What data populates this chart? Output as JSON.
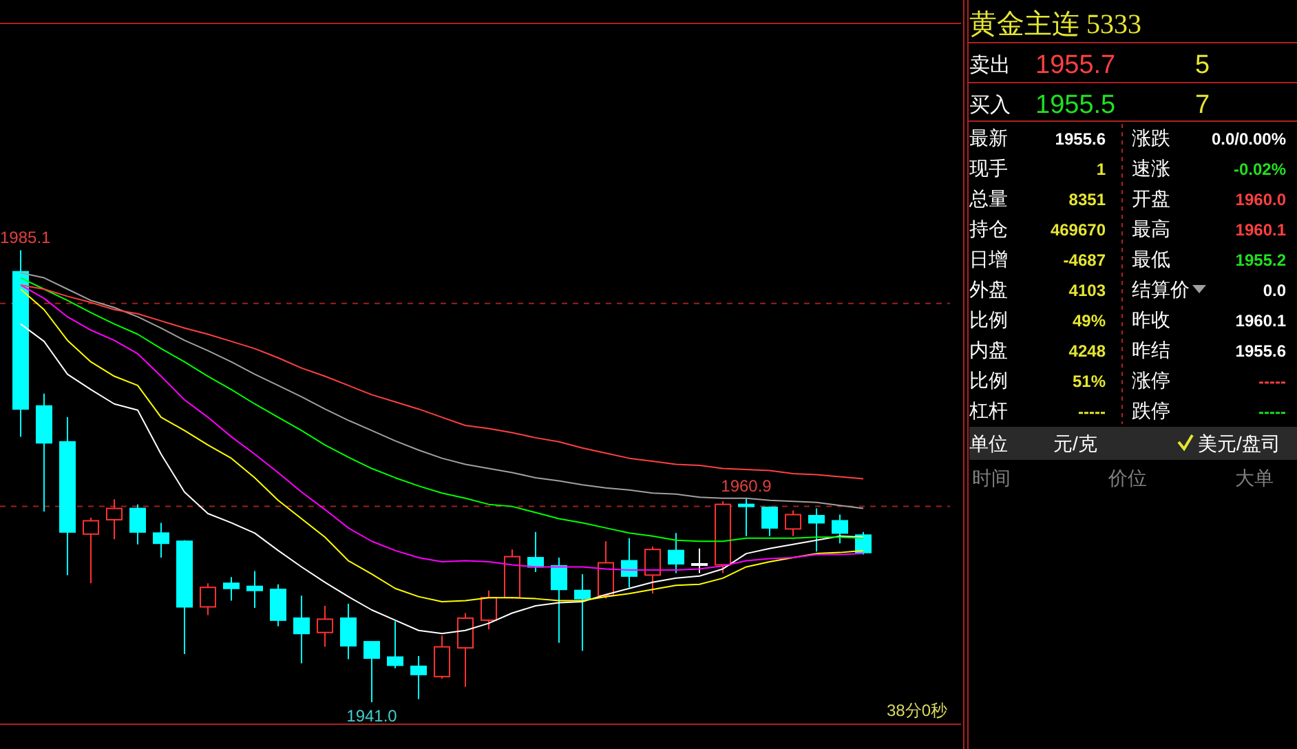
{
  "chart_data": [
    {
      "type": "candlestick",
      "categories": [
        null,
        null,
        null,
        null,
        null,
        null,
        null,
        null,
        null,
        null,
        null,
        null,
        null,
        null,
        null,
        null,
        null,
        null,
        null,
        null,
        null,
        null,
        null,
        null,
        null,
        null,
        null,
        null,
        null,
        null,
        null,
        null,
        null,
        null,
        null,
        null,
        null
      ],
      "ohlc": [
        [
          1983.0,
          1985.1,
          1966.9,
          1969.6
        ],
        [
          1969.9,
          1971.1,
          1959.6,
          1966.3
        ],
        [
          1966.4,
          1968.8,
          1953.4,
          1957.6
        ],
        [
          1957.4,
          1959.0,
          1952.6,
          1958.7
        ],
        [
          1958.8,
          1960.8,
          1956.9,
          1959.9
        ],
        [
          1959.9,
          1960.3,
          1956.4,
          1957.6
        ],
        [
          1957.5,
          1958.5,
          1955.1,
          1956.5
        ],
        [
          1956.7,
          1956.8,
          1945.7,
          1950.3
        ],
        [
          1950.3,
          1952.6,
          1949.5,
          1952.2
        ],
        [
          1952.6,
          1953.2,
          1950.9,
          1952.1
        ],
        [
          1952.3,
          1953.8,
          1950.2,
          1951.9
        ],
        [
          1952.0,
          1952.5,
          1948.4,
          1949.0
        ],
        [
          1949.2,
          1951.4,
          1944.8,
          1947.7
        ],
        [
          1947.8,
          1950.4,
          1946.4,
          1949.1
        ],
        [
          1949.2,
          1950.6,
          1945.2,
          1946.5
        ],
        [
          1946.9,
          1946.9,
          1941.0,
          1945.3
        ],
        [
          1945.4,
          1948.9,
          1944.3,
          1944.6
        ],
        [
          1944.5,
          1945.5,
          1941.3,
          1943.7
        ],
        [
          1943.5,
          1947.5,
          1943.3,
          1946.4
        ],
        [
          1946.3,
          1949.7,
          1942.5,
          1949.2
        ],
        [
          1949.0,
          1951.9,
          1948.1,
          1951.2
        ],
        [
          1951.2,
          1955.9,
          1951.1,
          1955.2
        ],
        [
          1955.1,
          1957.6,
          1953.7,
          1954.2
        ],
        [
          1954.3,
          1955.1,
          1946.8,
          1952.0
        ],
        [
          1951.9,
          1953.5,
          1946.0,
          1951.1
        ],
        [
          1951.4,
          1956.7,
          1951.1,
          1954.6
        ],
        [
          1954.8,
          1957.0,
          1952.2,
          1953.3
        ],
        [
          1953.4,
          1956.2,
          1951.6,
          1955.9
        ],
        [
          1955.8,
          1957.5,
          1953.6,
          1954.5
        ],
        [
          1954.5,
          1956.0,
          1953.6,
          1954.5
        ],
        [
          1954.4,
          1960.6,
          1953.6,
          1960.3
        ],
        [
          1960.3,
          1960.9,
          1957.2,
          1960.1
        ],
        [
          1960.0,
          1960.1,
          1957.2,
          1958.0
        ],
        [
          1957.9,
          1959.7,
          1957.2,
          1959.3
        ],
        [
          1959.2,
          1959.9,
          1955.7,
          1958.5
        ],
        [
          1958.7,
          1959.3,
          1956.5,
          1957.5
        ],
        [
          1957.3,
          1957.6,
          1955.4,
          1955.6
        ]
      ],
      "colors": [
        "#00ffff",
        "#00ffff",
        "#00ffff",
        "#ff3232",
        "#ff3232",
        "#00ffff",
        "#00ffff",
        "#00ffff",
        "#ff3232",
        "#00ffff",
        "#00ffff",
        "#00ffff",
        "#00ffff",
        "#ff3232",
        "#00ffff",
        "#00ffff",
        "#00ffff",
        "#00ffff",
        "#ff3232",
        "#ff3232",
        "#ff3232",
        "#ff3232",
        "#00ffff",
        "#00ffff",
        "#00ffff",
        "#ff3232",
        "#00ffff",
        "#ff3232",
        "#00ffff",
        "#ffffff",
        "#ff3232",
        "#00ffff",
        "#00ffff",
        "#ff3232",
        "#00ffff",
        "#00ffff",
        "#00ffff"
      ],
      "series": [
        {
          "type": "line",
          "color": "#ffffff",
          "values": [
            1977.9,
            1976.2,
            1973.0,
            1971.5,
            1970.1,
            1969.5,
            1965.2,
            1961.5,
            1959.4,
            1958.5,
            1957.5,
            1955.8,
            1954.2,
            1952.7,
            1951.3,
            1950.0,
            1949.0,
            1948.0,
            1947.7,
            1948.0,
            1948.7,
            1949.7,
            1950.4,
            1950.7,
            1950.8,
            1951.5,
            1952.1,
            1952.7,
            1953.1,
            1953.3,
            1954.0,
            1955.5,
            1956.0,
            1956.4,
            1956.8,
            1957.2,
            1957.1
          ]
        },
        {
          "type": "line",
          "color": "#ffff00",
          "values": [
            1981.3,
            1979.3,
            1976.3,
            1974.2,
            1972.8,
            1971.9,
            1968.8,
            1967.5,
            1966.1,
            1964.8,
            1962.9,
            1960.7,
            1958.9,
            1957.1,
            1954.8,
            1953.5,
            1952.1,
            1951.3,
            1950.8,
            1950.9,
            1951.2,
            1951.2,
            1951.1,
            1950.9,
            1950.9,
            1951.3,
            1951.6,
            1952.0,
            1952.4,
            1952.5,
            1953.1,
            1954.2,
            1954.7,
            1955.1,
            1955.5,
            1955.6,
            1955.8
          ]
        },
        {
          "type": "line",
          "color": "#ff00ff",
          "values": [
            1981.7,
            1980.4,
            1978.6,
            1977.3,
            1976.3,
            1975.0,
            1972.8,
            1970.5,
            1968.8,
            1966.9,
            1965.2,
            1963.4,
            1961.5,
            1959.8,
            1958.0,
            1956.7,
            1955.8,
            1955.1,
            1954.7,
            1954.8,
            1954.7,
            1954.4,
            1954.2,
            1954.2,
            1954.2,
            1954.0,
            1953.9,
            1953.9,
            1953.9,
            1954.0,
            1954.3,
            1954.8,
            1955.0,
            1955.1,
            1955.4,
            1955.4,
            1955.5
          ]
        },
        {
          "type": "line",
          "color": "#00ff00",
          "values": [
            1982.4,
            1981.3,
            1980.2,
            1979.0,
            1977.9,
            1976.9,
            1975.5,
            1974.2,
            1972.8,
            1971.5,
            1970.1,
            1968.8,
            1967.5,
            1966.1,
            1964.9,
            1963.8,
            1962.9,
            1962.1,
            1961.4,
            1960.9,
            1960.3,
            1960.1,
            1959.5,
            1958.9,
            1958.5,
            1958.0,
            1957.5,
            1957.2,
            1956.8,
            1956.7,
            1956.7,
            1957.0,
            1957.0,
            1957.0,
            1957.1,
            1957.1,
            1957.0
          ]
        },
        {
          "type": "line",
          "color": "#a0a0a0",
          "values": [
            1982.9,
            1982.4,
            1981.3,
            1980.2,
            1979.5,
            1978.6,
            1977.5,
            1976.3,
            1975.3,
            1974.2,
            1973.0,
            1971.9,
            1970.8,
            1969.6,
            1968.5,
            1967.5,
            1966.5,
            1965.6,
            1964.8,
            1964.2,
            1963.8,
            1963.4,
            1962.9,
            1962.6,
            1962.2,
            1961.9,
            1961.7,
            1961.4,
            1961.3,
            1961.0,
            1960.9,
            1960.9,
            1960.7,
            1960.6,
            1960.5,
            1960.2,
            1959.9
          ]
        },
        {
          "type": "line",
          "color": "#ff4040",
          "values": [
            1981.7,
            1981.3,
            1980.6,
            1980.0,
            1979.3,
            1978.9,
            1978.2,
            1977.5,
            1976.9,
            1976.2,
            1975.5,
            1974.6,
            1973.6,
            1972.8,
            1971.9,
            1971.0,
            1970.3,
            1969.6,
            1968.8,
            1968.0,
            1967.7,
            1967.3,
            1966.8,
            1966.4,
            1965.8,
            1965.3,
            1964.8,
            1964.5,
            1964.2,
            1964.1,
            1963.8,
            1963.7,
            1963.6,
            1963.3,
            1963.2,
            1963.0,
            1962.8
          ]
        }
      ],
      "ref_lines": [
        {
          "axis": "y",
          "value": 1979.9,
          "color": "#a02020",
          "line_style": "dashed"
        },
        {
          "axis": "y",
          "value": 1960.1,
          "color": "#a02020",
          "line_style": "dashed"
        }
      ],
      "annotations": [
        {
          "text": "1985.1",
          "y": 1985.1
        },
        {
          "text": "1960.9",
          "y": 1960.9
        },
        {
          "text": "1941.0",
          "y": 1941.0
        },
        "38分0秒"
      ]
    },
    {
      "type": "other",
      "annotations": [
        "黄金主连 5333",
        "卖出",
        "1955.7",
        "5",
        "买入",
        "1955.5",
        "7",
        "最新",
        "1955.6",
        "涨跌",
        "0.0/0.00%",
        "现手",
        "1",
        "速涨",
        "-0.02%",
        "总量",
        "8351",
        "开盘",
        "1960.0",
        "持仓",
        "469670",
        "最高",
        "1960.1",
        "日增",
        "-4687",
        "最低",
        "1955.2",
        "外盘",
        "4103",
        "结算价",
        "0.0",
        "比例",
        "49%",
        "昨收",
        "1960.1",
        "内盘",
        "4248",
        "昨结",
        "1955.6",
        "比例",
        "51%",
        "涨停",
        "-----",
        "杠杆",
        "-----",
        "跌停",
        "-----",
        "单位",
        "元/克",
        "美元/盘司",
        "时间",
        "价位",
        "大单"
      ]
    }
  ]
}
